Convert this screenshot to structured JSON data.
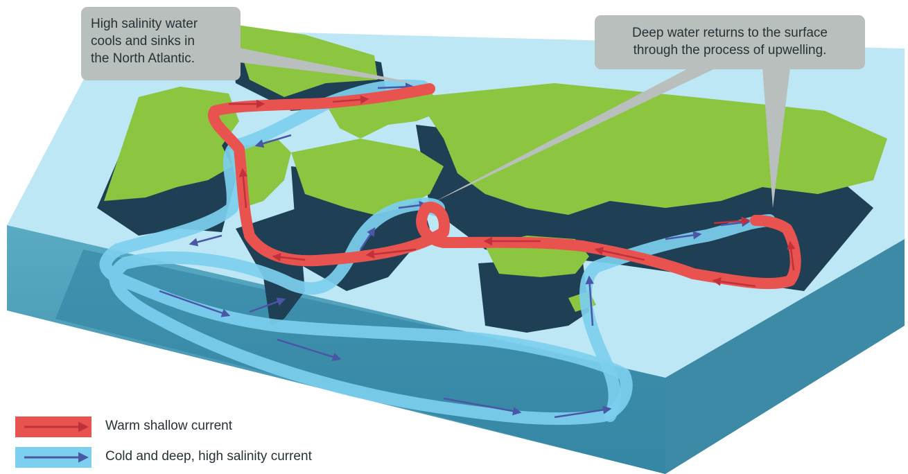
{
  "callouts": {
    "north_atlantic": [
      "High salinity water",
      "cools and sinks in",
      "the North Atlantic."
    ],
    "upwelling": [
      "Deep water returns to the surface",
      "through the process of upwelling."
    ]
  },
  "legend": {
    "warm": {
      "label": "Warm shallow current",
      "color": "#e8534f",
      "arrow_color": "#c0313a"
    },
    "cold": {
      "label": "Cold and deep, high salinity current",
      "color": "#7ccfee",
      "arrow_color": "#4a56a6"
    }
  },
  "colors": {
    "land": "#8cc540",
    "land_side": "#1f3f55",
    "ocean_top": "#bde7f4",
    "ocean_side": "#4b9db9",
    "callout": "#b9bfbd"
  }
}
